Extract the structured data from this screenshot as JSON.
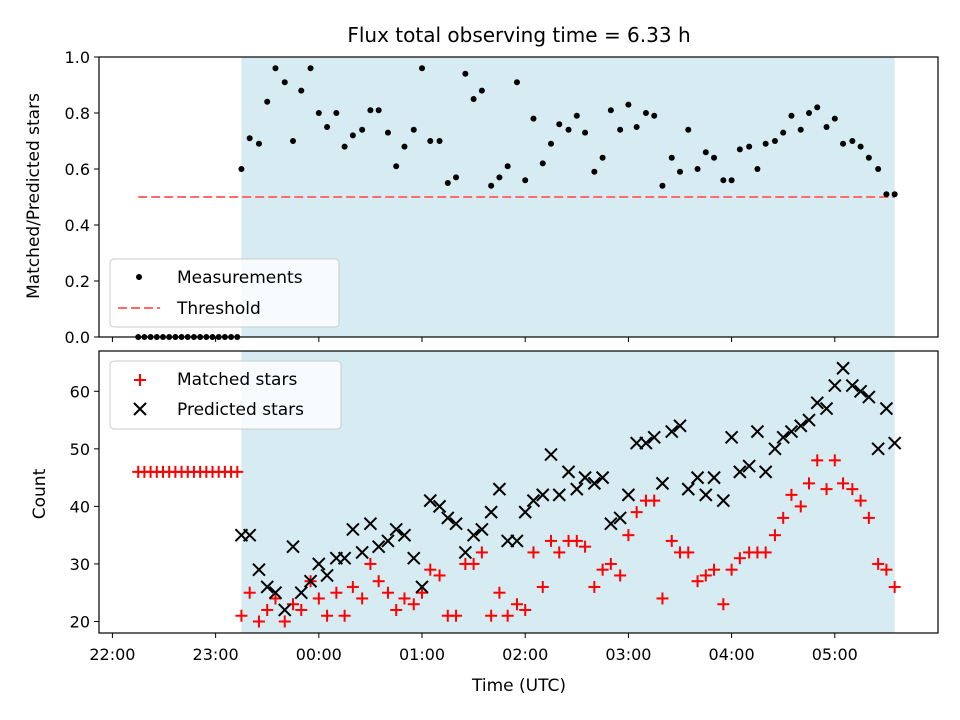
{
  "chart_data": [
    {
      "type": "scatter",
      "title": "Flux total observing time = 6.33 h",
      "ylabel": "Matched/Predicted stars",
      "xlabel": "",
      "x_tick_labels": [
        "22:00",
        "23:00",
        "00:00",
        "01:00",
        "02:00",
        "03:00",
        "04:00",
        "05:00"
      ],
      "x_tick_values": [
        22.0,
        23.0,
        24.0,
        25.0,
        26.0,
        27.0,
        28.0,
        29.0
      ],
      "xlim": [
        21.87,
        30.0
      ],
      "ylim": [
        0,
        1.0
      ],
      "y_tick_labels": [
        "0.0",
        "0.2",
        "0.4",
        "0.6",
        "0.8",
        "1.0"
      ],
      "y_tick_values": [
        0.0,
        0.2,
        0.4,
        0.6,
        0.8,
        1.0
      ],
      "observing_window": {
        "start": 23.25,
        "end": 29.58,
        "color": "#add8e6"
      },
      "legend": {
        "placement": "lower-left",
        "entries": [
          "Measurements",
          "Threshold"
        ]
      },
      "threshold": {
        "name": "Threshold",
        "y": 0.5,
        "x_start": 22.25,
        "x_end": 29.58,
        "color": "#ff6b6b"
      },
      "series": [
        {
          "name": "Measurements",
          "color": "#000000",
          "x": [
            22.25,
            22.31,
            22.37,
            22.43,
            22.49,
            22.55,
            22.61,
            22.67,
            22.73,
            22.79,
            22.85,
            22.91,
            22.97,
            23.03,
            23.09,
            23.15,
            23.21,
            23.25,
            23.33,
            23.42,
            23.5,
            23.58,
            23.67,
            23.75,
            23.83,
            23.92,
            24.0,
            24.08,
            24.17,
            24.25,
            24.33,
            24.42,
            24.5,
            24.58,
            24.67,
            24.75,
            24.83,
            24.92,
            25.0,
            25.08,
            25.17,
            25.25,
            25.33,
            25.42,
            25.5,
            25.58,
            25.67,
            25.75,
            25.83,
            25.92,
            26.0,
            26.08,
            26.17,
            26.25,
            26.33,
            26.42,
            26.5,
            26.58,
            26.67,
            26.75,
            26.83,
            26.92,
            27.0,
            27.08,
            27.17,
            27.25,
            27.33,
            27.42,
            27.5,
            27.58,
            27.67,
            27.75,
            27.83,
            27.92,
            28.0,
            28.08,
            28.17,
            28.25,
            28.33,
            28.42,
            28.5,
            28.58,
            28.67,
            28.75,
            28.83,
            28.92,
            29.0,
            29.08,
            29.17,
            29.25,
            29.33,
            29.42,
            29.5,
            29.58
          ],
          "y": [
            0,
            0,
            0,
            0,
            0,
            0,
            0,
            0,
            0,
            0,
            0,
            0,
            0,
            0,
            0,
            0,
            0,
            0.6,
            0.71,
            0.69,
            0.84,
            0.96,
            0.91,
            0.7,
            0.88,
            0.96,
            0.8,
            0.75,
            0.8,
            0.68,
            0.72,
            0.74,
            0.81,
            0.81,
            0.73,
            0.61,
            0.68,
            0.74,
            0.96,
            0.7,
            0.7,
            0.55,
            0.57,
            0.94,
            0.85,
            0.88,
            0.54,
            0.57,
            0.61,
            0.91,
            0.56,
            0.78,
            0.62,
            0.69,
            0.76,
            0.74,
            0.79,
            0.73,
            0.59,
            0.64,
            0.81,
            0.74,
            0.83,
            0.75,
            0.8,
            0.79,
            0.54,
            0.64,
            0.59,
            0.74,
            0.6,
            0.66,
            0.64,
            0.56,
            0.56,
            0.67,
            0.68,
            0.6,
            0.69,
            0.7,
            0.73,
            0.79,
            0.74,
            0.8,
            0.82,
            0.75,
            0.78,
            0.69,
            0.7,
            0.68,
            0.64,
            0.6,
            0.51,
            0.51
          ]
        }
      ]
    },
    {
      "type": "scatter",
      "title": "",
      "ylabel": "Count",
      "xlabel": "Time (UTC)",
      "x_tick_labels": [
        "22:00",
        "23:00",
        "00:00",
        "01:00",
        "02:00",
        "03:00",
        "04:00",
        "05:00"
      ],
      "x_tick_values": [
        22.0,
        23.0,
        24.0,
        25.0,
        26.0,
        27.0,
        28.0,
        29.0
      ],
      "xlim": [
        21.87,
        30.0
      ],
      "ylim": [
        18,
        67
      ],
      "y_tick_labels": [
        "20",
        "30",
        "40",
        "50",
        "60"
      ],
      "y_tick_values": [
        20,
        30,
        40,
        50,
        60
      ],
      "observing_window": {
        "start": 23.25,
        "end": 29.58,
        "color": "#add8e6"
      },
      "legend": {
        "placement": "upper-left",
        "entries": [
          "Matched stars",
          "Predicted stars"
        ]
      },
      "series": [
        {
          "name": "Matched stars",
          "marker": "plus",
          "color": "#ff0000",
          "x": [
            22.25,
            22.31,
            22.37,
            22.43,
            22.49,
            22.55,
            22.61,
            22.67,
            22.73,
            22.79,
            22.85,
            22.91,
            22.97,
            23.03,
            23.09,
            23.15,
            23.21,
            23.25,
            23.33,
            23.42,
            23.5,
            23.58,
            23.67,
            23.75,
            23.83,
            23.92,
            24.0,
            24.08,
            24.17,
            24.25,
            24.33,
            24.42,
            24.5,
            24.58,
            24.67,
            24.75,
            24.83,
            24.92,
            25.0,
            25.08,
            25.17,
            25.25,
            25.33,
            25.42,
            25.5,
            25.58,
            25.67,
            25.75,
            25.83,
            25.92,
            26.0,
            26.08,
            26.17,
            26.25,
            26.33,
            26.42,
            26.5,
            26.58,
            26.67,
            26.75,
            26.83,
            26.92,
            27.0,
            27.08,
            27.17,
            27.25,
            27.33,
            27.42,
            27.5,
            27.58,
            27.67,
            27.75,
            27.83,
            27.92,
            28.0,
            28.08,
            28.17,
            28.25,
            28.33,
            28.42,
            28.5,
            28.58,
            28.67,
            28.75,
            28.83,
            28.92,
            29.0,
            29.08,
            29.17,
            29.25,
            29.33,
            29.42,
            29.5,
            29.58
          ],
          "y": [
            46,
            46,
            46,
            46,
            46,
            46,
            46,
            46,
            46,
            46,
            46,
            46,
            46,
            46,
            46,
            46,
            46,
            21,
            25,
            20,
            22,
            24,
            20,
            23,
            22,
            27,
            24,
            21,
            25,
            21,
            26,
            24,
            30,
            27,
            25,
            22,
            24,
            23,
            25,
            29,
            28,
            21,
            21,
            30,
            30,
            32,
            21,
            25,
            21,
            23,
            22,
            32,
            26,
            34,
            32,
            34,
            34,
            33,
            26,
            29,
            30,
            28,
            35,
            39,
            41,
            41,
            24,
            34,
            32,
            32,
            27,
            28,
            29,
            23,
            29,
            31,
            32,
            32,
            32,
            35,
            38,
            42,
            40,
            44,
            48,
            43,
            48,
            44,
            43,
            41,
            38,
            30,
            29,
            26
          ]
        },
        {
          "name": "Predicted stars",
          "marker": "x",
          "color": "#000000",
          "x": [
            23.25,
            23.33,
            23.42,
            23.5,
            23.58,
            23.67,
            23.75,
            23.83,
            23.92,
            24.0,
            24.08,
            24.17,
            24.25,
            24.33,
            24.42,
            24.5,
            24.58,
            24.67,
            24.75,
            24.83,
            24.92,
            25.0,
            25.08,
            25.17,
            25.25,
            25.33,
            25.42,
            25.5,
            25.58,
            25.67,
            25.75,
            25.83,
            25.92,
            26.0,
            26.08,
            26.17,
            26.25,
            26.33,
            26.42,
            26.5,
            26.58,
            26.67,
            26.75,
            26.83,
            26.92,
            27.0,
            27.08,
            27.17,
            27.25,
            27.33,
            27.42,
            27.5,
            27.58,
            27.67,
            27.75,
            27.83,
            27.92,
            28.0,
            28.08,
            28.17,
            28.25,
            28.33,
            28.42,
            28.5,
            28.58,
            28.67,
            28.75,
            28.83,
            28.92,
            29.0,
            29.08,
            29.17,
            29.25,
            29.33,
            29.42,
            29.5,
            29.58
          ],
          "y": [
            35,
            35,
            29,
            26,
            25,
            22,
            33,
            25,
            27,
            30,
            28,
            31,
            31,
            36,
            32,
            37,
            33,
            34,
            36,
            35,
            31,
            26,
            41,
            40,
            38,
            37,
            32,
            35,
            36,
            39,
            43,
            34,
            34,
            39,
            41,
            42,
            49,
            42,
            46,
            43,
            45,
            44,
            45,
            37,
            38,
            42,
            51,
            51,
            52,
            44,
            53,
            54,
            43,
            45,
            42,
            45,
            41,
            52,
            46,
            47,
            53,
            46,
            50,
            52,
            53,
            54,
            55,
            58,
            57,
            61,
            64,
            61,
            60,
            59,
            50,
            57,
            51
          ]
        }
      ]
    }
  ]
}
